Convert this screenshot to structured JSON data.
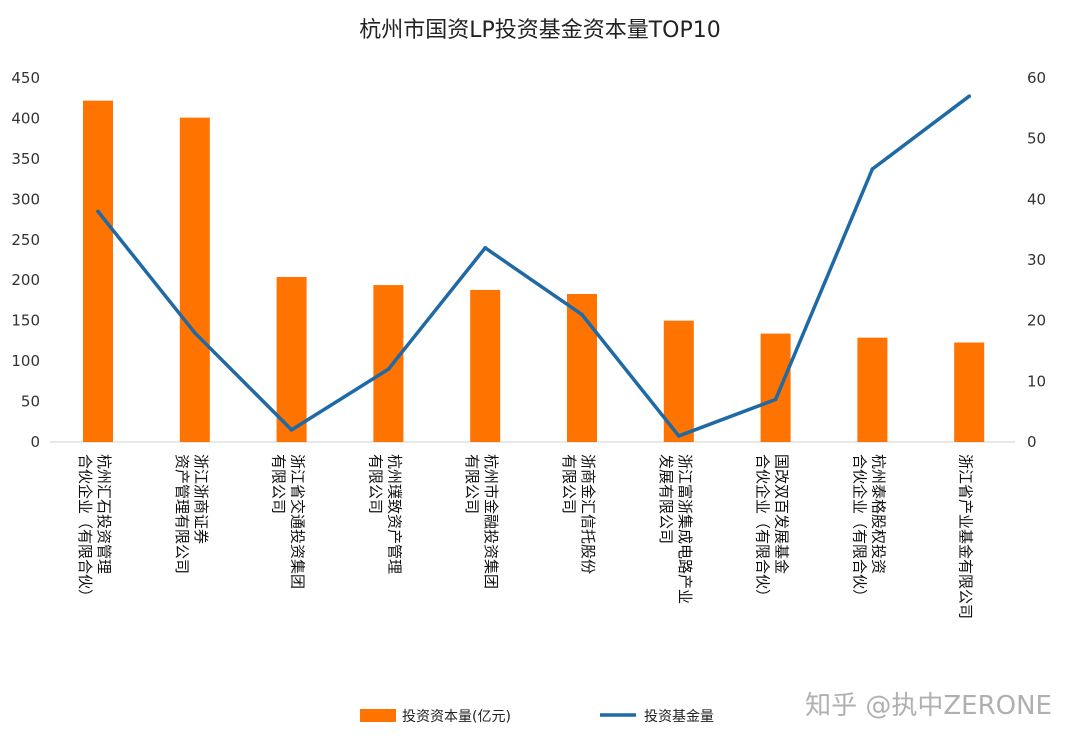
{
  "chart_data": {
    "type": "bar",
    "title": "杭州市国资LP投资基金资本量TOP10",
    "categories": [
      [
        "杭州汇石投资管理",
        "合伙企业（有限合伙）"
      ],
      [
        "浙江浙商证券",
        "资产管理有限公司"
      ],
      [
        "浙江省交通投资集团",
        "有限公司"
      ],
      [
        "杭州璞致资产管理",
        "有限公司"
      ],
      [
        "杭州市金融投资集团",
        "有限公司"
      ],
      [
        "浙商金汇信托股份",
        "有限公司"
      ],
      [
        "浙江富浙集成电路产业",
        "发展有限公司"
      ],
      [
        "国改双百发展基金",
        "合伙企业（有限合伙）"
      ],
      [
        "杭州泰格股权投资",
        "合伙企业（有限合伙）"
      ],
      [
        "浙江省产业基金有限公司"
      ]
    ],
    "series": [
      {
        "name": "投资资本量(亿元)",
        "type": "bar",
        "axis": "left",
        "color": "#FF7300",
        "values": [
          422,
          401,
          204,
          194,
          188,
          183,
          150,
          134,
          129,
          123
        ]
      },
      {
        "name": "投资基金量",
        "type": "line",
        "axis": "right",
        "color": "#1F6AA5",
        "values": [
          38,
          18,
          2,
          12,
          32,
          21,
          1,
          7,
          45,
          57
        ]
      }
    ],
    "y_left": {
      "min": 0,
      "max": 450,
      "ticks": [
        0,
        50,
        100,
        150,
        200,
        250,
        300,
        350,
        400,
        450
      ]
    },
    "y_right": {
      "min": 0,
      "max": 60,
      "ticks": [
        0,
        10,
        20,
        30,
        40,
        50,
        60
      ]
    },
    "grid": false,
    "legend_position": "bottom"
  },
  "watermark": "知乎 @执中ZERONE"
}
